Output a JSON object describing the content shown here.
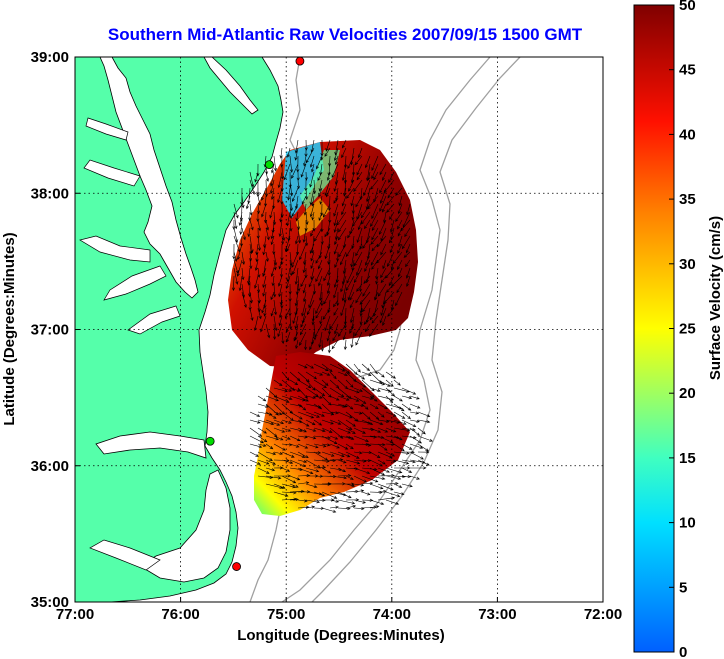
{
  "chart_data": {
    "type": "map",
    "title": "Southern Mid-Atlantic Raw Velocities 2007/09/15 1500 GMT",
    "xlabel": "Longitude (Degrees:Minutes)",
    "ylabel": "Latitude (Degrees:Minutes)",
    "x_ticks": [
      "77:00",
      "76:00",
      "75:00",
      "74:00",
      "73:00",
      "72:00"
    ],
    "y_ticks": [
      "39:00",
      "38:00",
      "37:00",
      "36:00",
      "35:00"
    ],
    "xlim": [
      -77,
      -72
    ],
    "ylim": [
      35,
      39
    ],
    "grid": true,
    "colorbar": {
      "label": "Surface Velocity (cm/s)",
      "range": [
        0,
        50
      ],
      "ticks": [
        "0",
        "5",
        "10",
        "15",
        "20",
        "25",
        "30",
        "35",
        "40",
        "45",
        "50"
      ],
      "colormap": "jet"
    },
    "land_color": "#55ffaa",
    "sites": [
      {
        "lon": -74.87,
        "lat": 38.97,
        "color": "#ff0000"
      },
      {
        "lon": -75.16,
        "lat": 38.21,
        "color": "#00dd00"
      },
      {
        "lon": -75.72,
        "lat": 36.18,
        "color": "#00dd00"
      },
      {
        "lon": -75.47,
        "lat": 35.26,
        "color": "#ff0000"
      }
    ]
  }
}
